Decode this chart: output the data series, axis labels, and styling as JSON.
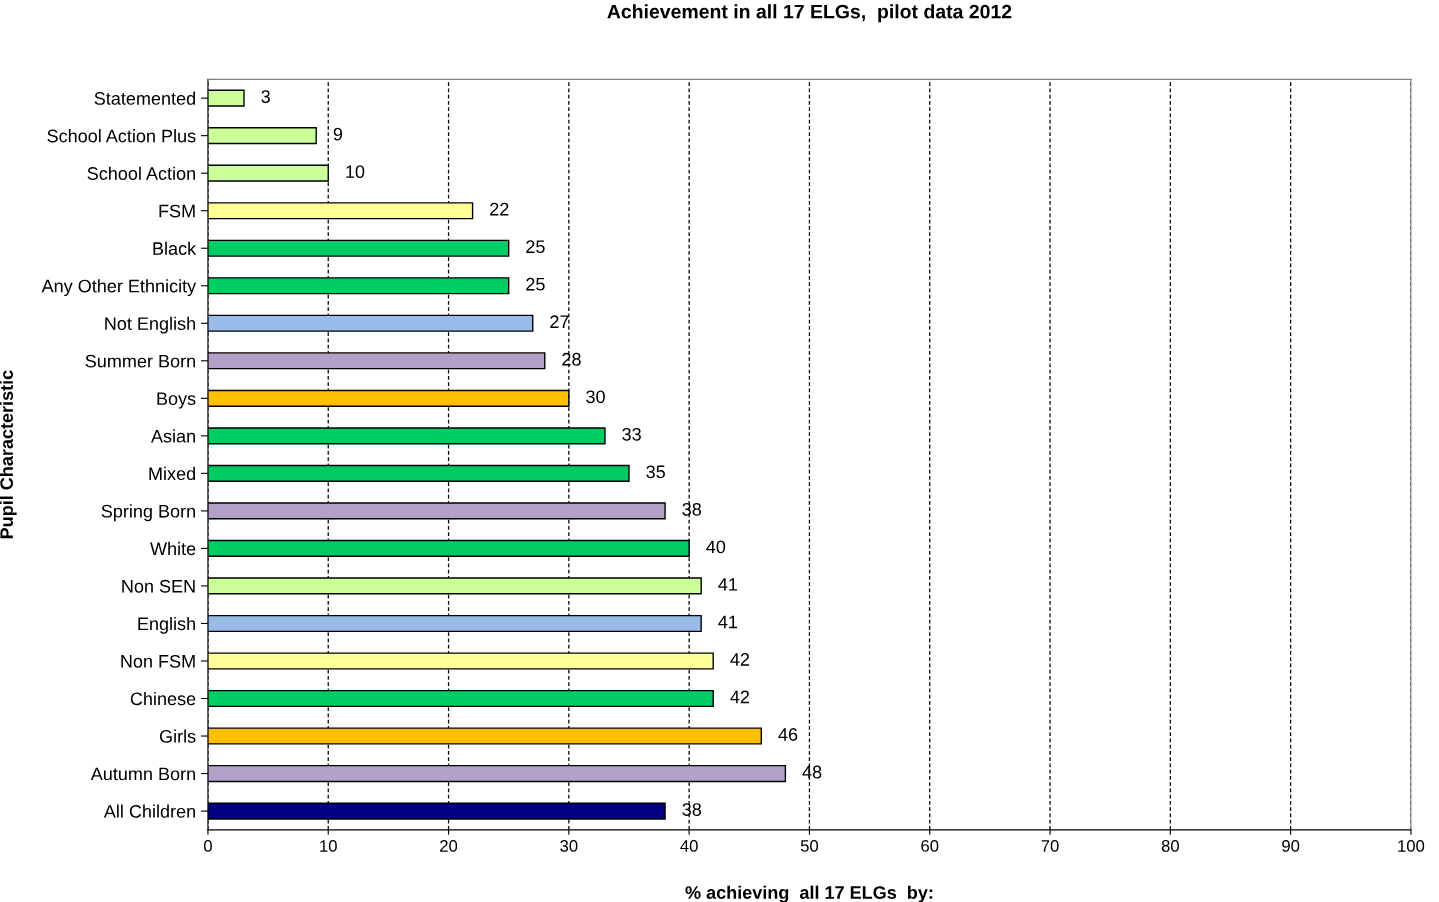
{
  "chart_data": {
    "type": "bar",
    "orientation": "horizontal",
    "title": "Achievement in all 17 ELGs,  pilot data 2012",
    "xlabel": "% achieving  all 17 ELGs  by:",
    "ylabel": "Pupil Characteristic",
    "categories": [
      "Statemented",
      "School Action Plus",
      "School Action",
      "FSM",
      "Black",
      "Any Other Ethnicity",
      "Not English",
      "Summer Born",
      "Boys",
      "Asian",
      "Mixed",
      "Spring Born",
      "White",
      "Non SEN",
      "English",
      "Non FSM",
      "Chinese",
      "Girls",
      "Autumn Born",
      "All Children"
    ],
    "values": [
      3,
      9,
      10,
      22,
      25,
      25,
      27,
      28,
      30,
      33,
      35,
      38,
      40,
      41,
      41,
      42,
      42,
      46,
      48,
      38
    ],
    "colors": [
      "#ccff99",
      "#ccff99",
      "#ccff99",
      "#ffff99",
      "#00cc66",
      "#00cc66",
      "#99bbe8",
      "#b3a2c7",
      "#ffc000",
      "#00cc66",
      "#00cc66",
      "#b3a2c7",
      "#00cc66",
      "#ccff99",
      "#99bbe8",
      "#ffff99",
      "#00cc66",
      "#ffc000",
      "#b3a2c7",
      "#000080"
    ],
    "xlim": [
      0,
      100
    ],
    "xticks": [
      0,
      10,
      20,
      30,
      40,
      50,
      60,
      70,
      80,
      90,
      100
    ],
    "grid": "x",
    "data_labels": true
  }
}
